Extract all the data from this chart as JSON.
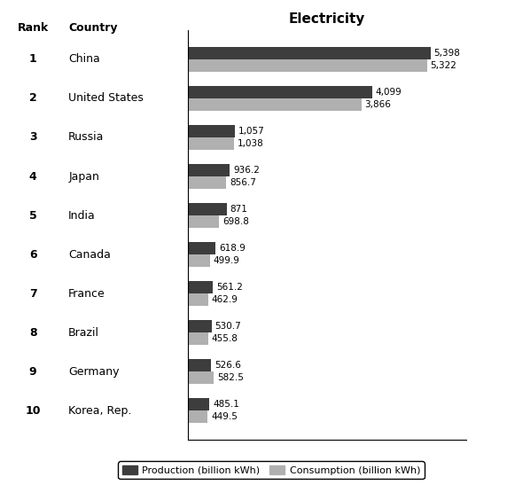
{
  "countries": [
    "China",
    "United States",
    "Russia",
    "Japan",
    "India",
    "Canada",
    "France",
    "Brazil",
    "Germany",
    "Korea, Rep."
  ],
  "ranks": [
    "1",
    "2",
    "3",
    "4",
    "5",
    "6",
    "7",
    "8",
    "9",
    "10"
  ],
  "production": [
    5398,
    4099,
    1057,
    936.2,
    871,
    618.9,
    561.2,
    530.7,
    526.6,
    485.1
  ],
  "consumption": [
    5322,
    3866,
    1038,
    856.7,
    698.8,
    499.9,
    462.9,
    455.8,
    582.5,
    449.5
  ],
  "prod_labels": [
    "5,398",
    "4,099",
    "1,057",
    "936.2",
    "871",
    "618.9",
    "561.2",
    "530.7",
    "526.6",
    "485.1"
  ],
  "cons_labels": [
    "5,322",
    "3,866",
    "1,038",
    "856.7",
    "698.8",
    "499.9",
    "462.9",
    "455.8",
    "582.5",
    "449.5"
  ],
  "production_color": "#3d3d3d",
  "consumption_color": "#b0b0b0",
  "title": "Electricity",
  "rank_header": "Rank",
  "country_header": "Country",
  "legend_production": "Production (billion kWh)",
  "legend_consumption": "Consumption (billion kWh)",
  "background_color": "#ffffff",
  "bar_height": 0.32,
  "xmax": 6200
}
